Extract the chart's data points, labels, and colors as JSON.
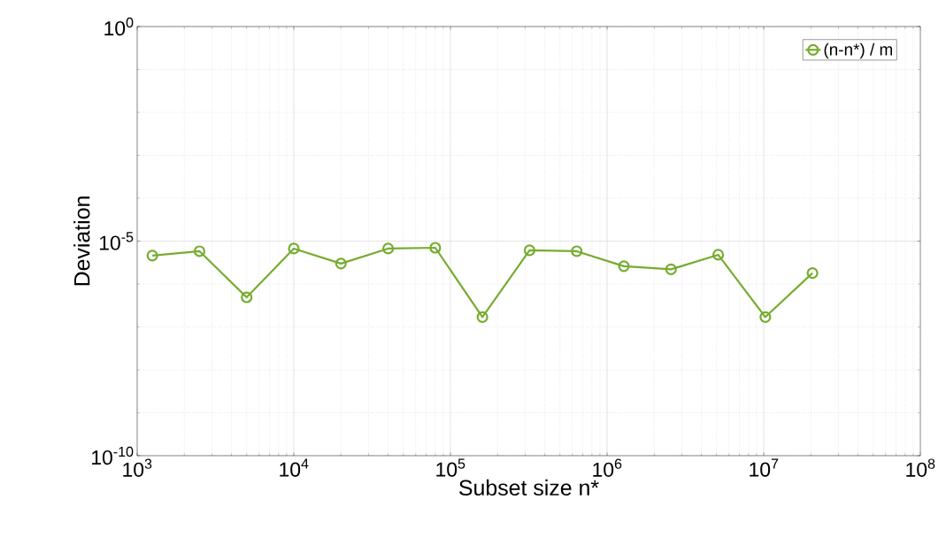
{
  "chart_data": {
    "type": "line",
    "xlabel": "Subset size n*",
    "ylabel": "Deviation",
    "log": "xy",
    "grid": true,
    "legend": "top right",
    "marker": "circle",
    "line_style": "solid",
    "x": [
      1250,
      2500,
      5000,
      10000,
      20000,
      40000,
      80000,
      160000,
      320000,
      640000,
      1280000,
      2560000,
      5120000,
      10240000,
      20480000
    ],
    "series": [
      {
        "name": "(n-n*) / m",
        "color": "#77ac30",
        "values": [
          4.6e-06,
          5.8e-06,
          4.9e-07,
          6.7e-06,
          3e-06,
          6.7e-06,
          7e-06,
          1.7e-07,
          6.1e-06,
          5.8e-06,
          2.6e-06,
          2.2e-06,
          4.8e-06,
          1.7e-07,
          1.8e-06
        ]
      }
    ],
    "xlim": [
      1000,
      100000000
    ],
    "ylim": [
      1e-10,
      1
    ],
    "xticks": [
      {
        "value": 1000,
        "label": "10$^{3}$"
      },
      {
        "value": 10000,
        "label": "10$^{4}$"
      },
      {
        "value": 100000,
        "label": "10$^{5}$"
      },
      {
        "value": 1000000,
        "label": "10$^{6}$"
      },
      {
        "value": 10000000,
        "label": "10$^{7}$"
      },
      {
        "value": 100000000,
        "label": "10$^{8}$"
      }
    ],
    "yticks": [
      {
        "value": 1e-10,
        "label": "10$^{-10}$"
      },
      {
        "value": 1e-05,
        "label": "10$^{-5}$"
      },
      {
        "value": 1,
        "label": "10$^{0}$"
      }
    ]
  }
}
